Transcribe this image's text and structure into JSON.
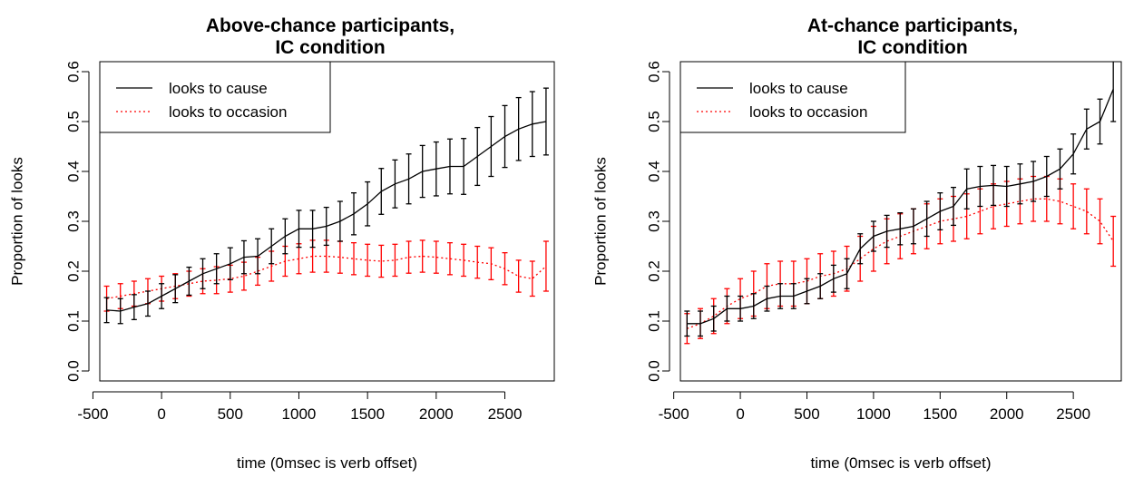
{
  "chart_data": [
    {
      "type": "line",
      "title": [
        "Above-chance participants,",
        "IC condition"
      ],
      "xlabel": "time (0msec is verb offset)",
      "ylabel": "Proportion of looks",
      "xlim": [
        -450,
        2860
      ],
      "ylim": [
        -0.02,
        0.62
      ],
      "x_ticks": [
        -500,
        0,
        500,
        1000,
        1500,
        2000,
        2500
      ],
      "y_ticks": [
        0.0,
        0.1,
        0.2,
        0.3,
        0.4,
        0.5,
        0.6
      ],
      "y_tick_labels": [
        "0.0",
        "0.1",
        "0.2",
        "0.3",
        "0.4",
        "0.5",
        "0.6"
      ],
      "legend_position": "top-left",
      "x": [
        -400,
        -300,
        -200,
        -100,
        0,
        100,
        200,
        300,
        400,
        500,
        600,
        700,
        800,
        900,
        1000,
        1100,
        1200,
        1300,
        1400,
        1500,
        1600,
        1700,
        1800,
        1900,
        2000,
        2100,
        2200,
        2300,
        2400,
        2500,
        2600,
        2700,
        2800
      ],
      "series": [
        {
          "name": "looks to cause",
          "color": "#000000",
          "style": "solid",
          "values": [
            0.122,
            0.12,
            0.128,
            0.135,
            0.15,
            0.165,
            0.18,
            0.195,
            0.205,
            0.215,
            0.228,
            0.23,
            0.25,
            0.27,
            0.285,
            0.285,
            0.29,
            0.3,
            0.315,
            0.335,
            0.36,
            0.375,
            0.385,
            0.4,
            0.405,
            0.41,
            0.41,
            0.43,
            0.45,
            0.47,
            0.485,
            0.495,
            0.5
          ],
          "errors": [
            0.025,
            0.025,
            0.025,
            0.025,
            0.025,
            0.028,
            0.028,
            0.03,
            0.03,
            0.032,
            0.033,
            0.035,
            0.035,
            0.035,
            0.037,
            0.037,
            0.038,
            0.04,
            0.042,
            0.044,
            0.046,
            0.048,
            0.05,
            0.052,
            0.054,
            0.055,
            0.056,
            0.058,
            0.06,
            0.062,
            0.063,
            0.065,
            0.067
          ]
        },
        {
          "name": "looks to occasion",
          "color": "#ff0000",
          "style": "dotted",
          "values": [
            0.145,
            0.15,
            0.155,
            0.16,
            0.165,
            0.17,
            0.175,
            0.18,
            0.182,
            0.185,
            0.19,
            0.2,
            0.21,
            0.22,
            0.225,
            0.23,
            0.23,
            0.228,
            0.225,
            0.222,
            0.22,
            0.222,
            0.228,
            0.23,
            0.228,
            0.225,
            0.222,
            0.218,
            0.215,
            0.205,
            0.19,
            0.185,
            0.21
          ],
          "errors": [
            0.025,
            0.025,
            0.025,
            0.025,
            0.025,
            0.025,
            0.025,
            0.025,
            0.027,
            0.027,
            0.028,
            0.028,
            0.03,
            0.03,
            0.03,
            0.032,
            0.032,
            0.032,
            0.032,
            0.032,
            0.032,
            0.032,
            0.032,
            0.032,
            0.032,
            0.032,
            0.032,
            0.032,
            0.032,
            0.032,
            0.032,
            0.035,
            0.05
          ]
        }
      ]
    },
    {
      "type": "line",
      "title": [
        "At-chance participants,",
        "IC condition"
      ],
      "xlabel": "time (0msec is verb offset)",
      "ylabel": "Proportion of looks",
      "xlim": [
        -450,
        2860
      ],
      "ylim": [
        -0.02,
        0.62
      ],
      "x_ticks": [
        -500,
        0,
        500,
        1000,
        1500,
        2000,
        2500
      ],
      "y_ticks": [
        0.0,
        0.1,
        0.2,
        0.3,
        0.4,
        0.5,
        0.6
      ],
      "y_tick_labels": [
        "0.0",
        "0.1",
        "0.2",
        "0.3",
        "0.4",
        "0.5",
        "0.6"
      ],
      "legend_position": "top-left",
      "x": [
        -400,
        -300,
        -200,
        -100,
        0,
        100,
        200,
        300,
        400,
        500,
        600,
        700,
        800,
        900,
        1000,
        1100,
        1200,
        1300,
        1400,
        1500,
        1600,
        1700,
        1800,
        1900,
        2000,
        2100,
        2200,
        2300,
        2400,
        2500,
        2600,
        2700,
        2800
      ],
      "series": [
        {
          "name": "looks to cause",
          "color": "#000000",
          "style": "solid",
          "values": [
            0.095,
            0.095,
            0.105,
            0.125,
            0.125,
            0.13,
            0.145,
            0.15,
            0.15,
            0.16,
            0.17,
            0.185,
            0.195,
            0.245,
            0.27,
            0.28,
            0.285,
            0.29,
            0.305,
            0.32,
            0.33,
            0.365,
            0.37,
            0.372,
            0.37,
            0.375,
            0.38,
            0.39,
            0.405,
            0.435,
            0.485,
            0.5,
            0.565
          ],
          "errors": [
            0.025,
            0.025,
            0.025,
            0.025,
            0.025,
            0.025,
            0.025,
            0.025,
            0.025,
            0.025,
            0.025,
            0.027,
            0.03,
            0.03,
            0.03,
            0.032,
            0.032,
            0.035,
            0.035,
            0.037,
            0.038,
            0.04,
            0.04,
            0.04,
            0.04,
            0.04,
            0.04,
            0.04,
            0.04,
            0.04,
            0.04,
            0.045,
            0.065
          ]
        },
        {
          "name": "looks to occasion",
          "color": "#ff0000",
          "style": "dotted",
          "values": [
            0.085,
            0.095,
            0.11,
            0.13,
            0.145,
            0.155,
            0.17,
            0.175,
            0.175,
            0.18,
            0.19,
            0.195,
            0.205,
            0.225,
            0.245,
            0.26,
            0.27,
            0.28,
            0.29,
            0.3,
            0.305,
            0.31,
            0.32,
            0.33,
            0.335,
            0.34,
            0.345,
            0.345,
            0.34,
            0.33,
            0.32,
            0.3,
            0.26
          ],
          "errors": [
            0.03,
            0.03,
            0.035,
            0.035,
            0.04,
            0.045,
            0.045,
            0.045,
            0.045,
            0.045,
            0.045,
            0.045,
            0.045,
            0.045,
            0.045,
            0.045,
            0.045,
            0.045,
            0.045,
            0.045,
            0.045,
            0.045,
            0.045,
            0.045,
            0.045,
            0.045,
            0.045,
            0.045,
            0.045,
            0.045,
            0.045,
            0.045,
            0.05
          ]
        }
      ]
    }
  ]
}
